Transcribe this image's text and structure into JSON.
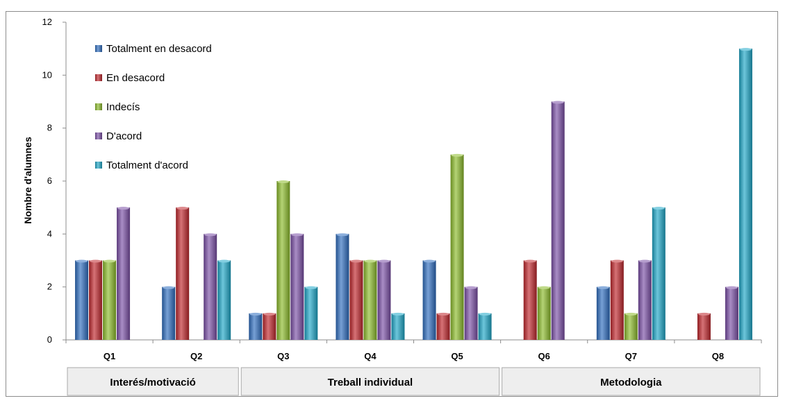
{
  "chart_data": {
    "type": "bar",
    "categories": [
      "Q1",
      "Q2",
      "Q3",
      "Q4",
      "Q5",
      "Q6",
      "Q7",
      "Q8"
    ],
    "series": [
      {
        "name": "Totalment en desacord",
        "color": "#2e6dbf",
        "values": [
          3,
          2,
          1,
          4,
          3,
          0,
          2,
          0
        ]
      },
      {
        "name": "En desacord",
        "color": "#c0262c",
        "values": [
          3,
          5,
          1,
          3,
          1,
          3,
          3,
          1
        ]
      },
      {
        "name": "Indecís",
        "color": "#8cbb2b",
        "values": [
          3,
          0,
          6,
          3,
          7,
          2,
          1,
          0
        ]
      },
      {
        "name": "D'acord",
        "color": "#7b4fa6",
        "values": [
          5,
          4,
          4,
          3,
          2,
          9,
          3,
          2
        ]
      },
      {
        "name": "Totalment d'acord",
        "color": "#1ea7c8",
        "values": [
          0,
          3,
          2,
          1,
          1,
          0,
          5,
          11
        ]
      }
    ],
    "ylabel": "Nombre d'alumnes",
    "ylim": [
      0,
      12
    ],
    "yticks": [
      0,
      2,
      4,
      6,
      8,
      10,
      12
    ],
    "legend_position": "top-left",
    "groups": [
      {
        "label": "Interés/motivació",
        "categories": [
          "Q1",
          "Q2"
        ]
      },
      {
        "label": "Treball individual",
        "categories": [
          "Q3",
          "Q4",
          "Q5"
        ]
      },
      {
        "label": "Metodologia",
        "categories": [
          "Q6",
          "Q7",
          "Q8"
        ]
      }
    ]
  }
}
